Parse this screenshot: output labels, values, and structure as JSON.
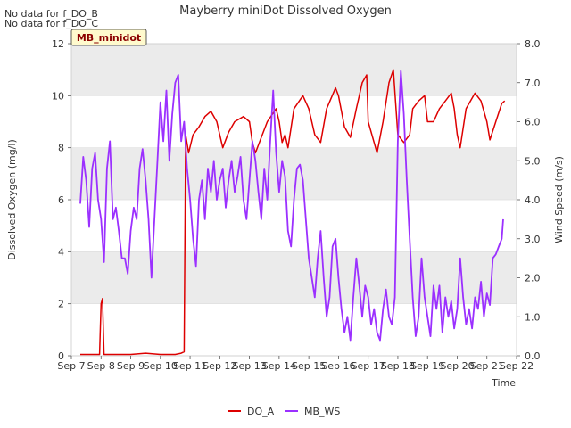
{
  "chart_data": {
    "type": "line",
    "title": "Mayberry miniDot Dissolved Oxygen",
    "xlabel": "Time",
    "ylabel_left": "Dissolved Oxygen (mg/l)",
    "ylabel_right": "Wind Speed (m/s)",
    "notes": [
      "No data for f_DO_B",
      "No data for f_DO_C"
    ],
    "badge": "MB_minidot",
    "colors": {
      "DO_A": "#dd0000",
      "MB_WS": "#9b30ff",
      "band": "#ebebeb"
    },
    "x_ticks": [
      "Sep 7",
      "Sep 8",
      "Sep 9",
      "Sep 10",
      "Sep 11",
      "Sep 12",
      "Sep 13",
      "Sep 14",
      "Sep 15",
      "Sep 16",
      "Sep 17",
      "Sep 18",
      "Sep 19",
      "Sep 20",
      "Sep 21",
      "Sep 22"
    ],
    "xlim": [
      7,
      22
    ],
    "ylim_left": [
      0,
      12
    ],
    "y_ticks_left": [
      "0",
      "2",
      "4",
      "6",
      "8",
      "10",
      "12"
    ],
    "ylim_right": [
      0,
      8
    ],
    "y_ticks_right": [
      "0.0",
      "1.0",
      "2.0",
      "3.0",
      "4.0",
      "5.0",
      "6.0",
      "7.0",
      "8.0"
    ],
    "series": [
      {
        "name": "DO_A",
        "axis": "left",
        "points": [
          [
            7.3,
            0.05
          ],
          [
            7.6,
            0.05
          ],
          [
            7.95,
            0.05
          ],
          [
            8.0,
            2.0
          ],
          [
            8.05,
            2.2
          ],
          [
            8.1,
            0.05
          ],
          [
            8.5,
            0.05
          ],
          [
            9.0,
            0.05
          ],
          [
            9.5,
            0.1
          ],
          [
            10.0,
            0.05
          ],
          [
            10.5,
            0.05
          ],
          [
            10.7,
            0.1
          ],
          [
            10.8,
            0.15
          ],
          [
            10.85,
            8.5
          ],
          [
            10.95,
            7.8
          ],
          [
            11.1,
            8.5
          ],
          [
            11.3,
            8.8
          ],
          [
            11.5,
            9.2
          ],
          [
            11.7,
            9.4
          ],
          [
            11.9,
            9.0
          ],
          [
            12.0,
            8.5
          ],
          [
            12.1,
            8.0
          ],
          [
            12.3,
            8.6
          ],
          [
            12.5,
            9.0
          ],
          [
            12.8,
            9.2
          ],
          [
            13.0,
            9.0
          ],
          [
            13.1,
            8.2
          ],
          [
            13.2,
            7.8
          ],
          [
            13.4,
            8.4
          ],
          [
            13.6,
            9.0
          ],
          [
            13.9,
            9.5
          ],
          [
            14.0,
            9.0
          ],
          [
            14.1,
            8.2
          ],
          [
            14.2,
            8.5
          ],
          [
            14.3,
            8.0
          ],
          [
            14.5,
            9.5
          ],
          [
            14.8,
            10.0
          ],
          [
            15.0,
            9.5
          ],
          [
            15.2,
            8.5
          ],
          [
            15.4,
            8.2
          ],
          [
            15.6,
            9.5
          ],
          [
            15.9,
            10.3
          ],
          [
            16.0,
            10.0
          ],
          [
            16.2,
            8.8
          ],
          [
            16.4,
            8.4
          ],
          [
            16.6,
            9.5
          ],
          [
            16.8,
            10.5
          ],
          [
            16.95,
            10.8
          ],
          [
            17.0,
            9.0
          ],
          [
            17.2,
            8.2
          ],
          [
            17.3,
            7.8
          ],
          [
            17.5,
            9.0
          ],
          [
            17.7,
            10.5
          ],
          [
            17.85,
            11.0
          ],
          [
            18.0,
            8.5
          ],
          [
            18.2,
            8.2
          ],
          [
            18.4,
            8.5
          ],
          [
            18.5,
            9.5
          ],
          [
            18.7,
            9.8
          ],
          [
            18.9,
            10.0
          ],
          [
            19.0,
            9.0
          ],
          [
            19.2,
            9.0
          ],
          [
            19.4,
            9.5
          ],
          [
            19.6,
            9.8
          ],
          [
            19.8,
            10.1
          ],
          [
            19.9,
            9.5
          ],
          [
            20.0,
            8.5
          ],
          [
            20.1,
            8.0
          ],
          [
            20.3,
            9.5
          ],
          [
            20.6,
            10.1
          ],
          [
            20.8,
            9.8
          ],
          [
            21.0,
            9.0
          ],
          [
            21.1,
            8.3
          ],
          [
            21.3,
            9.0
          ],
          [
            21.5,
            9.7
          ],
          [
            21.6,
            9.8
          ]
        ]
      },
      {
        "name": "MB_WS",
        "axis": "right",
        "points": [
          [
            7.3,
            3.9
          ],
          [
            7.4,
            5.1
          ],
          [
            7.5,
            4.5
          ],
          [
            7.6,
            3.3
          ],
          [
            7.7,
            4.8
          ],
          [
            7.8,
            5.2
          ],
          [
            7.9,
            4.0
          ],
          [
            8.0,
            3.5
          ],
          [
            8.1,
            2.4
          ],
          [
            8.2,
            4.8
          ],
          [
            8.3,
            5.5
          ],
          [
            8.4,
            3.5
          ],
          [
            8.5,
            3.8
          ],
          [
            8.6,
            3.2
          ],
          [
            8.7,
            2.5
          ],
          [
            8.8,
            2.5
          ],
          [
            8.9,
            2.1
          ],
          [
            9.0,
            3.2
          ],
          [
            9.1,
            3.8
          ],
          [
            9.2,
            3.5
          ],
          [
            9.3,
            4.8
          ],
          [
            9.4,
            5.3
          ],
          [
            9.5,
            4.5
          ],
          [
            9.6,
            3.5
          ],
          [
            9.7,
            2.0
          ],
          [
            9.8,
            3.5
          ],
          [
            9.9,
            5.0
          ],
          [
            10.0,
            6.5
          ],
          [
            10.1,
            5.5
          ],
          [
            10.2,
            6.8
          ],
          [
            10.3,
            5.0
          ],
          [
            10.4,
            6.2
          ],
          [
            10.5,
            7.0
          ],
          [
            10.6,
            7.2
          ],
          [
            10.7,
            5.5
          ],
          [
            10.8,
            6.0
          ],
          [
            10.9,
            4.8
          ],
          [
            11.0,
            4.0
          ],
          [
            11.1,
            3.0
          ],
          [
            11.2,
            2.3
          ],
          [
            11.3,
            4.0
          ],
          [
            11.4,
            4.5
          ],
          [
            11.5,
            3.5
          ],
          [
            11.6,
            4.8
          ],
          [
            11.7,
            4.2
          ],
          [
            11.8,
            5.0
          ],
          [
            11.9,
            4.0
          ],
          [
            12.0,
            4.5
          ],
          [
            12.1,
            4.8
          ],
          [
            12.2,
            3.8
          ],
          [
            12.3,
            4.5
          ],
          [
            12.4,
            5.0
          ],
          [
            12.5,
            4.2
          ],
          [
            12.6,
            4.6
          ],
          [
            12.7,
            5.1
          ],
          [
            12.8,
            4.0
          ],
          [
            12.9,
            3.5
          ],
          [
            13.0,
            4.5
          ],
          [
            13.1,
            5.5
          ],
          [
            13.2,
            5.0
          ],
          [
            13.3,
            4.2
          ],
          [
            13.4,
            3.5
          ],
          [
            13.5,
            4.8
          ],
          [
            13.6,
            4.0
          ],
          [
            13.7,
            5.5
          ],
          [
            13.8,
            6.8
          ],
          [
            13.9,
            5.2
          ],
          [
            14.0,
            4.2
          ],
          [
            14.1,
            5.0
          ],
          [
            14.2,
            4.6
          ],
          [
            14.3,
            3.2
          ],
          [
            14.4,
            2.8
          ],
          [
            14.5,
            4.0
          ],
          [
            14.6,
            4.8
          ],
          [
            14.7,
            4.9
          ],
          [
            14.8,
            4.5
          ],
          [
            14.9,
            3.5
          ],
          [
            15.0,
            2.5
          ],
          [
            15.1,
            2.0
          ],
          [
            15.2,
            1.5
          ],
          [
            15.3,
            2.5
          ],
          [
            15.4,
            3.2
          ],
          [
            15.5,
            2.0
          ],
          [
            15.6,
            1.0
          ],
          [
            15.7,
            1.5
          ],
          [
            15.8,
            2.8
          ],
          [
            15.9,
            3.0
          ],
          [
            16.0,
            2.0
          ],
          [
            16.1,
            1.2
          ],
          [
            16.2,
            0.6
          ],
          [
            16.3,
            1.0
          ],
          [
            16.4,
            0.4
          ],
          [
            16.5,
            1.5
          ],
          [
            16.6,
            2.5
          ],
          [
            16.7,
            1.8
          ],
          [
            16.8,
            1.0
          ],
          [
            16.9,
            1.8
          ],
          [
            17.0,
            1.5
          ],
          [
            17.1,
            0.8
          ],
          [
            17.2,
            1.2
          ],
          [
            17.3,
            0.6
          ],
          [
            17.4,
            0.4
          ],
          [
            17.5,
            1.2
          ],
          [
            17.6,
            1.7
          ],
          [
            17.7,
            1.0
          ],
          [
            17.8,
            0.8
          ],
          [
            17.9,
            1.5
          ],
          [
            18.0,
            5.5
          ],
          [
            18.1,
            7.3
          ],
          [
            18.2,
            6.2
          ],
          [
            18.3,
            4.5
          ],
          [
            18.4,
            3.0
          ],
          [
            18.5,
            1.5
          ],
          [
            18.6,
            0.5
          ],
          [
            18.7,
            1.0
          ],
          [
            18.8,
            2.5
          ],
          [
            18.9,
            1.5
          ],
          [
            19.0,
            1.0
          ],
          [
            19.1,
            0.5
          ],
          [
            19.2,
            1.8
          ],
          [
            19.3,
            1.2
          ],
          [
            19.4,
            1.8
          ],
          [
            19.5,
            0.6
          ],
          [
            19.6,
            1.5
          ],
          [
            19.7,
            1.0
          ],
          [
            19.8,
            1.4
          ],
          [
            19.9,
            0.7
          ],
          [
            20.0,
            1.2
          ],
          [
            20.1,
            2.5
          ],
          [
            20.2,
            1.5
          ],
          [
            20.3,
            0.8
          ],
          [
            20.4,
            1.2
          ],
          [
            20.5,
            0.7
          ],
          [
            20.6,
            1.5
          ],
          [
            20.7,
            1.2
          ],
          [
            20.8,
            1.9
          ],
          [
            20.9,
            1.0
          ],
          [
            21.0,
            1.6
          ],
          [
            21.1,
            1.3
          ],
          [
            21.2,
            2.5
          ],
          [
            21.3,
            2.6
          ],
          [
            21.4,
            2.8
          ],
          [
            21.5,
            3.0
          ],
          [
            21.55,
            3.5
          ]
        ]
      }
    ],
    "legend": [
      {
        "name": "DO_A",
        "label": "DO_A"
      },
      {
        "name": "MB_WS",
        "label": "MB_WS"
      }
    ]
  }
}
